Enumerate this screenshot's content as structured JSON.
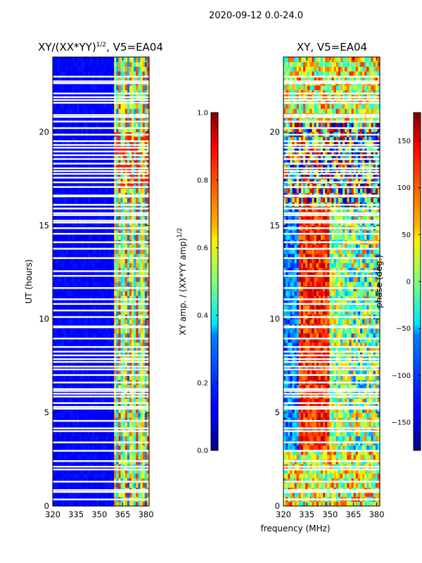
{
  "figure_title": "2020-09-12 0.0-24.0",
  "chart_data": [
    {
      "type": "heatmap",
      "title": "XY/(XX*YY)",
      "title_exponent": "1/2",
      "title_suffix": ", V5=EA04",
      "xlabel": "",
      "ylabel": "UT (hours)",
      "xlim": [
        320,
        382
      ],
      "ylim": [
        0,
        24
      ],
      "x_ticks": [
        320,
        335,
        350,
        365,
        380
      ],
      "y_ticks": [
        0,
        5,
        10,
        15,
        20
      ],
      "colormap": "jet",
      "colorbar": {
        "label": "XY amp. / (XX*YY amp)",
        "label_exponent": "1/2",
        "range": [
          0.0,
          1.0
        ],
        "ticks": [
          "0.0",
          "0.2",
          "0.4",
          "0.6",
          "0.8",
          "1.0"
        ]
      },
      "description_values": {
        "background_level": 0.12,
        "bright_band_start_mhz": 360,
        "bright_band_level_max": 0.85
      }
    },
    {
      "type": "heatmap",
      "title": "XY, V5=EA04",
      "xlabel": "frequency (MHz)",
      "ylabel": "",
      "xlim": [
        320,
        382
      ],
      "ylim": [
        0,
        24
      ],
      "x_ticks": [
        320,
        335,
        350,
        365,
        380
      ],
      "y_ticks": [
        0,
        5,
        10,
        15,
        20
      ],
      "colormap": "jet",
      "colorbar": {
        "label": "phase (deg.)",
        "range": [
          -180,
          180
        ],
        "ticks": [
          "−150",
          "−100",
          "−50",
          "0",
          "50",
          "100",
          "150"
        ],
        "tick_values": [
          -150,
          -100,
          -50,
          0,
          50,
          100,
          150
        ]
      }
    }
  ],
  "gap_rows_hours": [
    0.35,
    0.75,
    0.85,
    1.3,
    1.95,
    2.1,
    2.4,
    2.95,
    3.4,
    4.0,
    4.15,
    4.55,
    5.2,
    5.3,
    5.5,
    5.85,
    6.0,
    6.15,
    6.25,
    6.6,
    7.0,
    7.3,
    7.45,
    7.7,
    7.85,
    8.05,
    8.25,
    8.5,
    8.95,
    9.55,
    9.6,
    10.1,
    10.45,
    10.8,
    11.05,
    11.65,
    12.3,
    12.55,
    13.25,
    13.75,
    14.1,
    14.55,
    14.85,
    15.15,
    15.25,
    15.55,
    15.65,
    15.9,
    16.1,
    16.55,
    16.6,
    17.05,
    17.3,
    17.55,
    17.75,
    17.9,
    18.05,
    18.3,
    18.55,
    18.75,
    18.95,
    19.15,
    19.3,
    19.5,
    19.85,
    20.2,
    20.55,
    20.8,
    20.9,
    21.55,
    21.7,
    21.85,
    22.05,
    22.6,
    22.7,
    22.95
  ]
}
